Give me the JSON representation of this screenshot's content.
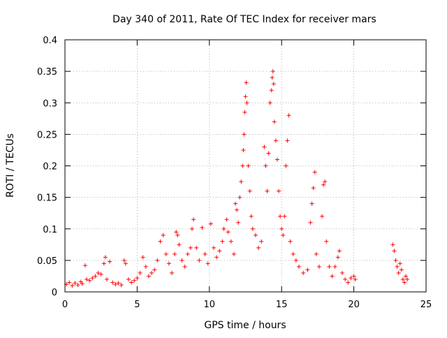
{
  "chart_data": {
    "type": "scatter",
    "title": "Day 340 of 2011, Rate Of TEC Index for receiver mars",
    "xlabel": "GPS time / hours",
    "ylabel": "ROTI / TECUs",
    "xlim": [
      0,
      25
    ],
    "ylim": [
      0,
      0.4
    ],
    "x_ticks": [
      0,
      5,
      10,
      15,
      20,
      25
    ],
    "x_tick_labels": [
      "0",
      "5",
      "10",
      "15",
      "20",
      "25"
    ],
    "y_ticks": [
      0,
      0.05,
      0.1,
      0.15,
      0.2,
      0.25,
      0.3,
      0.35,
      0.4
    ],
    "y_tick_labels": [
      "0",
      "0.05",
      "0.1",
      "0.15",
      "0.2",
      "0.25",
      "0.3",
      "0.35",
      "0.4"
    ],
    "grid": true,
    "legend": "none",
    "marker": "plus",
    "marker_color": "#ff0000",
    "series": [
      {
        "points": [
          [
            0.1,
            0.012
          ],
          [
            0.3,
            0.015
          ],
          [
            0.5,
            0.01
          ],
          [
            0.7,
            0.014
          ],
          [
            0.9,
            0.011
          ],
          [
            1.1,
            0.016
          ],
          [
            1.2,
            0.013
          ],
          [
            1.4,
            0.042
          ],
          [
            1.5,
            0.02
          ],
          [
            1.7,
            0.018
          ],
          [
            1.9,
            0.022
          ],
          [
            2.1,
            0.025
          ],
          [
            2.3,
            0.03
          ],
          [
            2.5,
            0.028
          ],
          [
            2.7,
            0.045
          ],
          [
            2.8,
            0.055
          ],
          [
            2.9,
            0.02
          ],
          [
            3.1,
            0.048
          ],
          [
            3.3,
            0.015
          ],
          [
            3.5,
            0.012
          ],
          [
            3.7,
            0.014
          ],
          [
            3.9,
            0.011
          ],
          [
            4.1,
            0.05
          ],
          [
            4.2,
            0.045
          ],
          [
            4.4,
            0.02
          ],
          [
            4.6,
            0.015
          ],
          [
            4.8,
            0.018
          ],
          [
            5.0,
            0.022
          ],
          [
            5.2,
            0.03
          ],
          [
            5.4,
            0.055
          ],
          [
            5.6,
            0.04
          ],
          [
            5.8,
            0.025
          ],
          [
            6.0,
            0.03
          ],
          [
            6.2,
            0.035
          ],
          [
            6.4,
            0.05
          ],
          [
            6.6,
            0.08
          ],
          [
            6.8,
            0.09
          ],
          [
            7.0,
            0.06
          ],
          [
            7.2,
            0.045
          ],
          [
            7.4,
            0.03
          ],
          [
            7.6,
            0.06
          ],
          [
            7.7,
            0.095
          ],
          [
            7.8,
            0.09
          ],
          [
            7.9,
            0.075
          ],
          [
            8.1,
            0.05
          ],
          [
            8.3,
            0.04
          ],
          [
            8.5,
            0.06
          ],
          [
            8.7,
            0.07
          ],
          [
            8.8,
            0.1
          ],
          [
            8.9,
            0.115
          ],
          [
            9.1,
            0.07
          ],
          [
            9.3,
            0.05
          ],
          [
            9.5,
            0.102
          ],
          [
            9.7,
            0.06
          ],
          [
            9.9,
            0.045
          ],
          [
            10.1,
            0.108
          ],
          [
            10.3,
            0.07
          ],
          [
            10.5,
            0.055
          ],
          [
            10.7,
            0.065
          ],
          [
            10.9,
            0.08
          ],
          [
            11.0,
            0.1
          ],
          [
            11.2,
            0.115
          ],
          [
            11.3,
            0.095
          ],
          [
            11.5,
            0.08
          ],
          [
            11.7,
            0.06
          ],
          [
            11.8,
            0.14
          ],
          [
            11.9,
            0.13
          ],
          [
            12.0,
            0.11
          ],
          [
            12.1,
            0.15
          ],
          [
            12.2,
            0.175
          ],
          [
            12.3,
            0.2
          ],
          [
            12.35,
            0.225
          ],
          [
            12.4,
            0.25
          ],
          [
            12.45,
            0.285
          ],
          [
            12.5,
            0.31
          ],
          [
            12.55,
            0.332
          ],
          [
            12.6,
            0.3
          ],
          [
            12.7,
            0.2
          ],
          [
            12.8,
            0.16
          ],
          [
            12.9,
            0.12
          ],
          [
            13.0,
            0.1
          ],
          [
            13.2,
            0.09
          ],
          [
            13.4,
            0.07
          ],
          [
            13.6,
            0.08
          ],
          [
            13.8,
            0.23
          ],
          [
            13.9,
            0.2
          ],
          [
            14.0,
            0.16
          ],
          [
            14.1,
            0.22
          ],
          [
            14.2,
            0.3
          ],
          [
            14.3,
            0.32
          ],
          [
            14.35,
            0.34
          ],
          [
            14.4,
            0.35
          ],
          [
            14.45,
            0.33
          ],
          [
            14.5,
            0.27
          ],
          [
            14.6,
            0.24
          ],
          [
            14.7,
            0.21
          ],
          [
            14.8,
            0.16
          ],
          [
            14.9,
            0.12
          ],
          [
            15.0,
            0.1
          ],
          [
            15.1,
            0.09
          ],
          [
            15.2,
            0.12
          ],
          [
            15.3,
            0.2
          ],
          [
            15.4,
            0.24
          ],
          [
            15.5,
            0.28
          ],
          [
            15.6,
            0.08
          ],
          [
            15.8,
            0.06
          ],
          [
            16.0,
            0.05
          ],
          [
            16.2,
            0.04
          ],
          [
            16.5,
            0.03
          ],
          [
            16.8,
            0.035
          ],
          [
            17.0,
            0.11
          ],
          [
            17.1,
            0.14
          ],
          [
            17.2,
            0.165
          ],
          [
            17.3,
            0.19
          ],
          [
            17.4,
            0.06
          ],
          [
            17.6,
            0.04
          ],
          [
            17.8,
            0.12
          ],
          [
            17.9,
            0.17
          ],
          [
            18.0,
            0.175
          ],
          [
            18.1,
            0.08
          ],
          [
            18.3,
            0.04
          ],
          [
            18.5,
            0.025
          ],
          [
            18.7,
            0.04
          ],
          [
            18.9,
            0.055
          ],
          [
            19.0,
            0.065
          ],
          [
            19.2,
            0.03
          ],
          [
            19.4,
            0.02
          ],
          [
            19.6,
            0.015
          ],
          [
            19.8,
            0.022
          ],
          [
            20.0,
            0.025
          ],
          [
            20.1,
            0.02
          ],
          [
            22.7,
            0.075
          ],
          [
            22.8,
            0.065
          ],
          [
            22.9,
            0.05
          ],
          [
            23.0,
            0.04
          ],
          [
            23.1,
            0.03
          ],
          [
            23.2,
            0.045
          ],
          [
            23.3,
            0.035
          ],
          [
            23.4,
            0.02
          ],
          [
            23.5,
            0.015
          ],
          [
            23.6,
            0.025
          ],
          [
            23.7,
            0.02
          ]
        ]
      }
    ]
  }
}
